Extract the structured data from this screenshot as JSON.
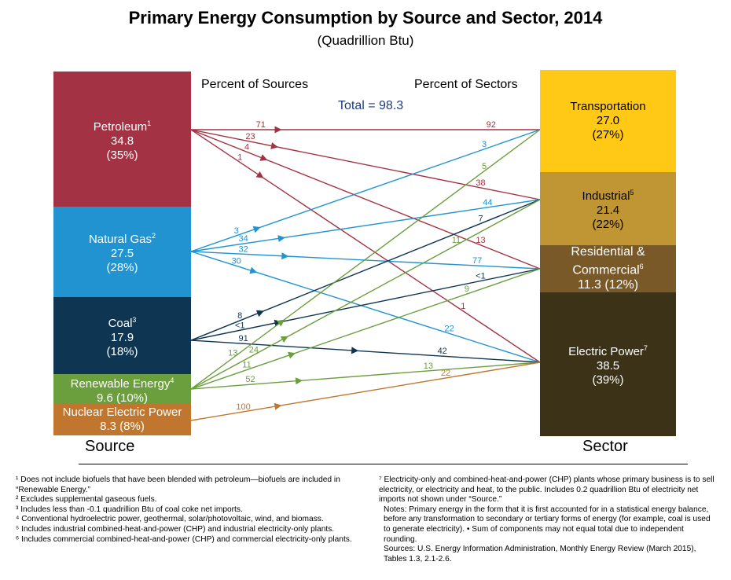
{
  "title": "Primary Energy Consumption by Source and Sector, 2014",
  "subtitle": "(Quadrillion Btu)",
  "header_sources": "Percent of Sources",
  "header_sectors": "Percent of Sectors",
  "total": "Total = 98.3",
  "axis_source": "Source",
  "axis_sector": "Sector",
  "colors": {
    "petroleum": "#a33344",
    "natural_gas": "#2193d1",
    "coal": "#0e3551",
    "renewable": "#6b9e3c",
    "nuclear": "#c1762f",
    "transportation": "#ffc915",
    "industrial": "#bf9633",
    "residential": "#7a5928",
    "electric": "#3c3217"
  },
  "sources": [
    {
      "key": "petroleum",
      "name": "Petroleum",
      "sup": "1",
      "value": "34.8",
      "pct": "(35%)"
    },
    {
      "key": "natural_gas",
      "name": "Natural Gas",
      "sup": "2",
      "value": "27.5",
      "pct": "(28%)"
    },
    {
      "key": "coal",
      "name": "Coal",
      "sup": "3",
      "value": "17.9",
      "pct": "(18%)"
    },
    {
      "key": "renewable",
      "name": "Renewable Energy",
      "sup": "4",
      "value": "9.6 (10%)"
    },
    {
      "key": "nuclear",
      "name": "Nuclear Electric Power",
      "value": "8.3 (8%)"
    }
  ],
  "sectors": [
    {
      "key": "transportation",
      "name": "Transportation",
      "value": "27.0",
      "pct": "(27%)"
    },
    {
      "key": "industrial",
      "name": "Industrial",
      "sup": "5",
      "value": "21.4",
      "pct": "(22%)"
    },
    {
      "key": "residential",
      "name": "Residential &",
      "name2": "Commercial",
      "sup": "6",
      "value": "11.3 (12%)"
    },
    {
      "key": "electric",
      "name": "Electric Power",
      "sup": "7",
      "value": "38.5",
      "pct": "(39%)"
    }
  ],
  "flows": [
    {
      "from": "petroleum",
      "to": "transportation",
      "src_label": "71",
      "dst_label": "92"
    },
    {
      "from": "petroleum",
      "to": "industrial",
      "src_label": "23",
      "dst_label": "38"
    },
    {
      "from": "petroleum",
      "to": "residential",
      "src_label": "4",
      "dst_label": "13"
    },
    {
      "from": "petroleum",
      "to": "electric",
      "src_label": "1",
      "dst_label": "1"
    },
    {
      "from": "natural_gas",
      "to": "transportation",
      "src_label": "3",
      "dst_label": "3"
    },
    {
      "from": "natural_gas",
      "to": "industrial",
      "src_label": "34",
      "dst_label": "44"
    },
    {
      "from": "natural_gas",
      "to": "residential",
      "src_label": "32",
      "dst_label": "77"
    },
    {
      "from": "natural_gas",
      "to": "electric",
      "src_label": "30",
      "dst_label": "22"
    },
    {
      "from": "coal",
      "to": "industrial",
      "src_label": "8",
      "dst_label": "7"
    },
    {
      "from": "coal",
      "to": "residential",
      "src_label": "<1",
      "dst_label": "<1"
    },
    {
      "from": "coal",
      "to": "electric",
      "src_label": "91",
      "dst_label": "42"
    },
    {
      "from": "renewable",
      "to": "transportation",
      "src_label": "13",
      "dst_label": "5"
    },
    {
      "from": "renewable",
      "to": "industrial",
      "src_label": "24",
      "dst_label": "11"
    },
    {
      "from": "renewable",
      "to": "residential",
      "src_label": "11",
      "dst_label": "9"
    },
    {
      "from": "renewable",
      "to": "electric",
      "src_label": "52",
      "dst_label": "13"
    },
    {
      "from": "nuclear",
      "to": "electric",
      "src_label": "100",
      "dst_label": "22"
    }
  ],
  "notes_left": [
    "¹ Does not include biofuels that have been blended with petroleum—biofuels are included in “Renewable Energy.”",
    "² Excludes supplemental gaseous fuels.",
    "³ Includes less than -0.1 quadrillion Btu of coal coke net imports.",
    "⁴ Conventional hydroelectric power, geothermal, solar/photovoltaic, wind, and biomass.",
    "⁵ Includes industrial combined-heat-and-power (CHP) and industrial electricity-only plants.",
    "⁶ Includes commercial combined-heat-and-power (CHP) and commercial electricity-only plants."
  ],
  "notes_right": [
    "⁷ Electricity-only and combined-heat-and-power (CHP) plants whose primary business is to sell electricity, or electricity and heat, to the public. Includes 0.2 quadrillion Btu of electricity net imports not shown under “Source.”",
    "Notes: Primary energy in the form that it is first accounted for in a statistical energy balance, before any transformation to secondary or tertiary forms of energy (for example, coal is used to generate electricity). • Sum of components may not equal total due to independent rounding.",
    "Sources: U.S. Energy Information Administration, Monthly Energy Review (March 2015), Tables 1.3, 2.1-2.6."
  ]
}
